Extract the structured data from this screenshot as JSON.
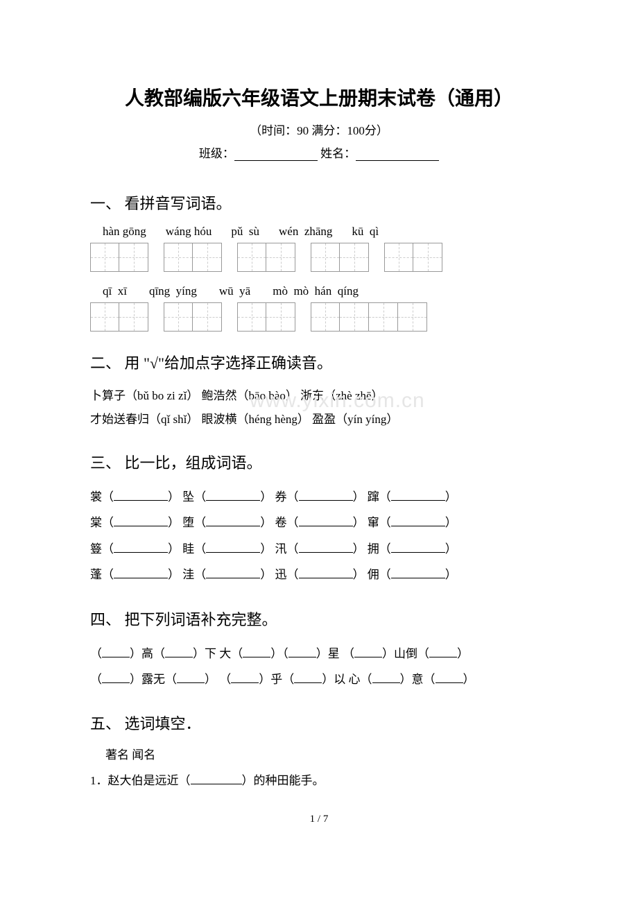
{
  "header": {
    "title": "人教部编版六年级语文上册期末试卷（通用）",
    "time_label": "（时间：90   满分：100分）",
    "class_label": "班级：",
    "name_label": " 姓名："
  },
  "section1": {
    "title": "一、 看拼音写词语。",
    "row1_pinyin": [
      "hàn gōng",
      "wáng hóu",
      "pǔ  sù",
      "wén  zhāng",
      "kū  qì"
    ],
    "row1_boxcounts": [
      2,
      2,
      2,
      2,
      2
    ],
    "row2_pinyin": [
      "qī  xī",
      "qīng  yíng",
      "wū  yā",
      "mò  mò  hán  qíng"
    ],
    "row2_boxcounts": [
      2,
      2,
      2,
      4
    ]
  },
  "section2": {
    "title": "二、 用 \"√\"给加点字选择正确读音。",
    "lines": [
      "卜算子（bǔ bo  zi zǐ）   鲍浩然（bāo bào）   浙东（zhè  zhē）",
      "才始送春归（qǐ shǐ）    眼波横（héng hèng）  盈盈（yín yíng）"
    ]
  },
  "watermark": "www.yixin.com.cn",
  "section3": {
    "title": "三、 比一比，组成词语。",
    "rows": [
      [
        "裳",
        "坠",
        "券",
        "蹿"
      ],
      [
        "棠",
        "堕",
        "卷",
        "窜"
      ],
      [
        "簦",
        "眭",
        "汛",
        "拥"
      ],
      [
        "蓬",
        "洼",
        "迅",
        "佣"
      ]
    ]
  },
  "section4": {
    "title": "四、 把下列词语补充完整。",
    "rows": [
      [
        "（",
        "）高（",
        "）下    大（",
        "）（",
        "）星    （",
        "）山倒（",
        "）"
      ],
      [
        "（",
        "）露无（",
        "）    （",
        "）乎（",
        "）以    心（",
        "）意（",
        "）"
      ]
    ]
  },
  "section5": {
    "title": "五、 选词填空．",
    "pair": "著名         闻名",
    "q1_prefix": "1．赵大伯是远近（",
    "q1_suffix": "）的种田能手。"
  },
  "footer": {
    "page": "1 / 7"
  }
}
